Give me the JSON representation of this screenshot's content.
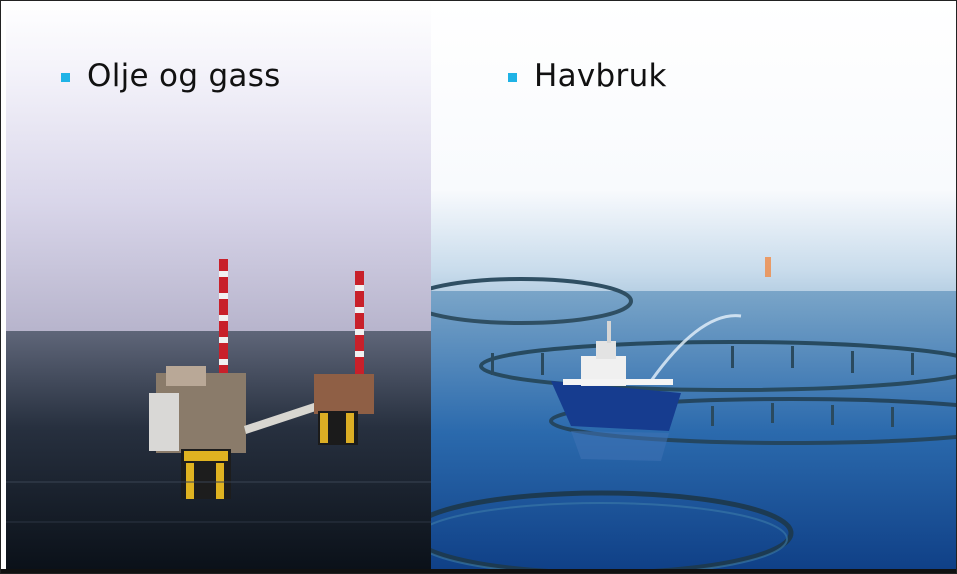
{
  "slide": {
    "left_heading": "Olje og gass",
    "right_heading": "Havbruk",
    "bullet_color": "#1fb3e6",
    "left_image_icon": "offshore-oil-platform-photo",
    "right_image_icon": "fish-farm-pens-with-boat-photo"
  }
}
